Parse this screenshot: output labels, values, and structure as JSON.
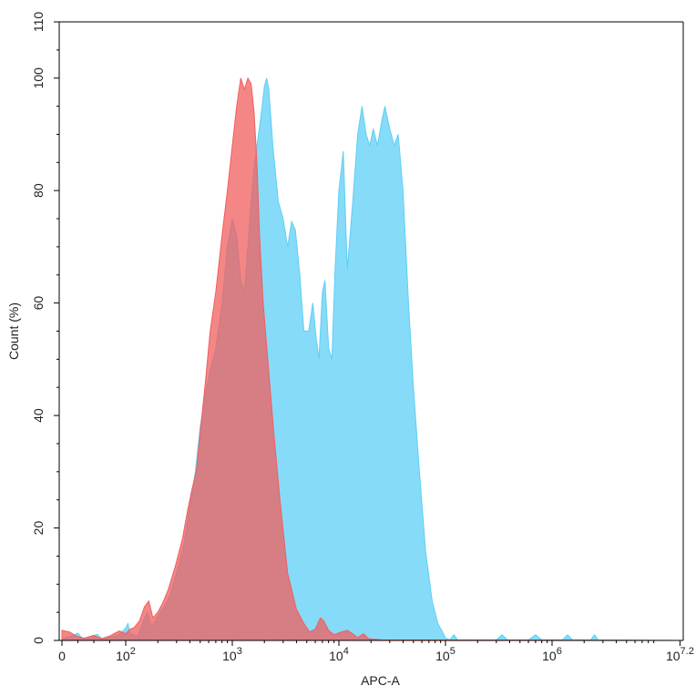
{
  "chart_data": {
    "type": "area",
    "title": "",
    "xlabel": "APC-A",
    "ylabel": "Count (%)",
    "x_scale": "log",
    "ylim": [
      0,
      110
    ],
    "grid": false,
    "x_ticks": [
      {
        "value": 0,
        "base": "0",
        "exp": ""
      },
      {
        "value": 100,
        "base": "10",
        "exp": "2"
      },
      {
        "value": 1000,
        "base": "10",
        "exp": "3"
      },
      {
        "value": 10000,
        "base": "10",
        "exp": "4"
      },
      {
        "value": 100000,
        "base": "10",
        "exp": "5"
      },
      {
        "value": 1000000,
        "base": "10",
        "exp": "6"
      },
      {
        "value": 15848932,
        "base": "10",
        "exp": "7.2"
      }
    ],
    "y_ticks": [
      "0",
      "20",
      "40",
      "60",
      "80",
      "100",
      "110"
    ],
    "series": [
      {
        "color": "#5ecff5",
        "opacity": 0.75,
        "points": [
          [
            0,
            0.3
          ],
          [
            15,
            0.8
          ],
          [
            25,
            1.3
          ],
          [
            32,
            0.3
          ],
          [
            45,
            0.5
          ],
          [
            55,
            1.1
          ],
          [
            63,
            0.3
          ],
          [
            75,
            0.6
          ],
          [
            90,
            1.0
          ],
          [
            100,
            2.2
          ],
          [
            105,
            3.0
          ],
          [
            110,
            1.2
          ],
          [
            130,
            0.8
          ],
          [
            150,
            4.0
          ],
          [
            160,
            5.0
          ],
          [
            175,
            2.5
          ],
          [
            190,
            3.5
          ],
          [
            210,
            5.0
          ],
          [
            230,
            6.0
          ],
          [
            260,
            8.0
          ],
          [
            300,
            12.0
          ],
          [
            350,
            17.0
          ],
          [
            400,
            24.0
          ],
          [
            450,
            30.0
          ],
          [
            500,
            38.0
          ],
          [
            560,
            44.0
          ],
          [
            620,
            48.0
          ],
          [
            700,
            52.0
          ],
          [
            800,
            60.0
          ],
          [
            900,
            70.0
          ],
          [
            1000,
            75.0
          ],
          [
            1100,
            72.0
          ],
          [
            1200,
            64.0
          ],
          [
            1300,
            62.0
          ],
          [
            1400,
            70.0
          ],
          [
            1500,
            78.0
          ],
          [
            1600,
            84.0
          ],
          [
            1700,
            88.0
          ],
          [
            1850,
            93.0
          ],
          [
            2000,
            98.5
          ],
          [
            2100,
            100.0
          ],
          [
            2200,
            98.0
          ],
          [
            2400,
            88.0
          ],
          [
            2700,
            78.0
          ],
          [
            3000,
            75.0
          ],
          [
            3300,
            70.0
          ],
          [
            3600,
            74.5
          ],
          [
            3900,
            73.0
          ],
          [
            4300,
            65.0
          ],
          [
            4700,
            55.0
          ],
          [
            5200,
            55.0
          ],
          [
            5700,
            60.0
          ],
          [
            6100,
            54.0
          ],
          [
            6500,
            50.0
          ],
          [
            7000,
            62.0
          ],
          [
            7400,
            64.0
          ],
          [
            8000,
            52.0
          ],
          [
            8600,
            50.0
          ],
          [
            9200,
            66.0
          ],
          [
            10000,
            80.0
          ],
          [
            11000,
            87.0
          ],
          [
            12000,
            66.0
          ],
          [
            13500,
            78.0
          ],
          [
            15000,
            90.0
          ],
          [
            16500,
            95.0
          ],
          [
            18000,
            90.0
          ],
          [
            19500,
            88.0
          ],
          [
            21000,
            91.0
          ],
          [
            23000,
            88.0
          ],
          [
            25000,
            92.0
          ],
          [
            27000,
            95.0
          ],
          [
            30000,
            91.0
          ],
          [
            33000,
            88.0
          ],
          [
            36000,
            90.0
          ],
          [
            40000,
            80.0
          ],
          [
            45000,
            60.0
          ],
          [
            50000,
            45.0
          ],
          [
            57000,
            30.0
          ],
          [
            65000,
            16.0
          ],
          [
            75000,
            7.0
          ],
          [
            85000,
            3.0
          ],
          [
            95000,
            1.3
          ],
          [
            100000,
            0.4
          ],
          [
            110000,
            0.1
          ],
          [
            120000,
            1.0
          ],
          [
            130000,
            0.1
          ],
          [
            300000,
            0.1
          ],
          [
            340000,
            1.0
          ],
          [
            380000,
            0.1
          ],
          [
            600000,
            0.1
          ],
          [
            700000,
            1.0
          ],
          [
            800000,
            0.1
          ],
          [
            1250000,
            0.1
          ],
          [
            1400000,
            1.0
          ],
          [
            1550000,
            0.1
          ],
          [
            2300000,
            0.1
          ],
          [
            2500000,
            1.0
          ],
          [
            2700000,
            0.1
          ],
          [
            15848932,
            0
          ]
        ]
      },
      {
        "color": "#f25e5e",
        "opacity": 0.75,
        "points": [
          [
            0,
            1.8
          ],
          [
            12,
            1.5
          ],
          [
            22,
            0.8
          ],
          [
            35,
            0.4
          ],
          [
            50,
            0.9
          ],
          [
            62,
            0.3
          ],
          [
            75,
            0.8
          ],
          [
            90,
            1.7
          ],
          [
            100,
            1.2
          ],
          [
            110,
            2.0
          ],
          [
            120,
            2.3
          ],
          [
            135,
            3.5
          ],
          [
            150,
            6.0
          ],
          [
            165,
            7.0
          ],
          [
            180,
            4.0
          ],
          [
            200,
            5.0
          ],
          [
            220,
            6.5
          ],
          [
            250,
            9.0
          ],
          [
            290,
            13.0
          ],
          [
            340,
            18.0
          ],
          [
            380,
            23.0
          ],
          [
            420,
            27.0
          ],
          [
            460,
            30.0
          ],
          [
            500,
            37.0
          ],
          [
            560,
            46.0
          ],
          [
            620,
            55.0
          ],
          [
            700,
            62.0
          ],
          [
            800,
            72.0
          ],
          [
            900,
            80.0
          ],
          [
            1000,
            88.0
          ],
          [
            1100,
            95.0
          ],
          [
            1200,
            100.0
          ],
          [
            1300,
            98.0
          ],
          [
            1400,
            100.0
          ],
          [
            1500,
            99.0
          ],
          [
            1600,
            94.0
          ],
          [
            1700,
            85.0
          ],
          [
            1800,
            72.0
          ],
          [
            1950,
            60.0
          ],
          [
            2150,
            50.0
          ],
          [
            2450,
            37.0
          ],
          [
            2800,
            25.0
          ],
          [
            3300,
            12.0
          ],
          [
            4000,
            5.5
          ],
          [
            4700,
            3.0
          ],
          [
            5300,
            1.5
          ],
          [
            6000,
            2.0
          ],
          [
            6700,
            4.0
          ],
          [
            7200,
            3.5
          ],
          [
            8000,
            1.8
          ],
          [
            9000,
            1.0
          ],
          [
            10500,
            1.5
          ],
          [
            12000,
            1.8
          ],
          [
            13500,
            1.2
          ],
          [
            15000,
            0.5
          ],
          [
            17000,
            1.2
          ],
          [
            19000,
            0.3
          ],
          [
            22000,
            0.2
          ],
          [
            25000,
            0.1
          ],
          [
            15848932,
            0
          ]
        ]
      }
    ],
    "overlap_color": "#a85e6e"
  }
}
